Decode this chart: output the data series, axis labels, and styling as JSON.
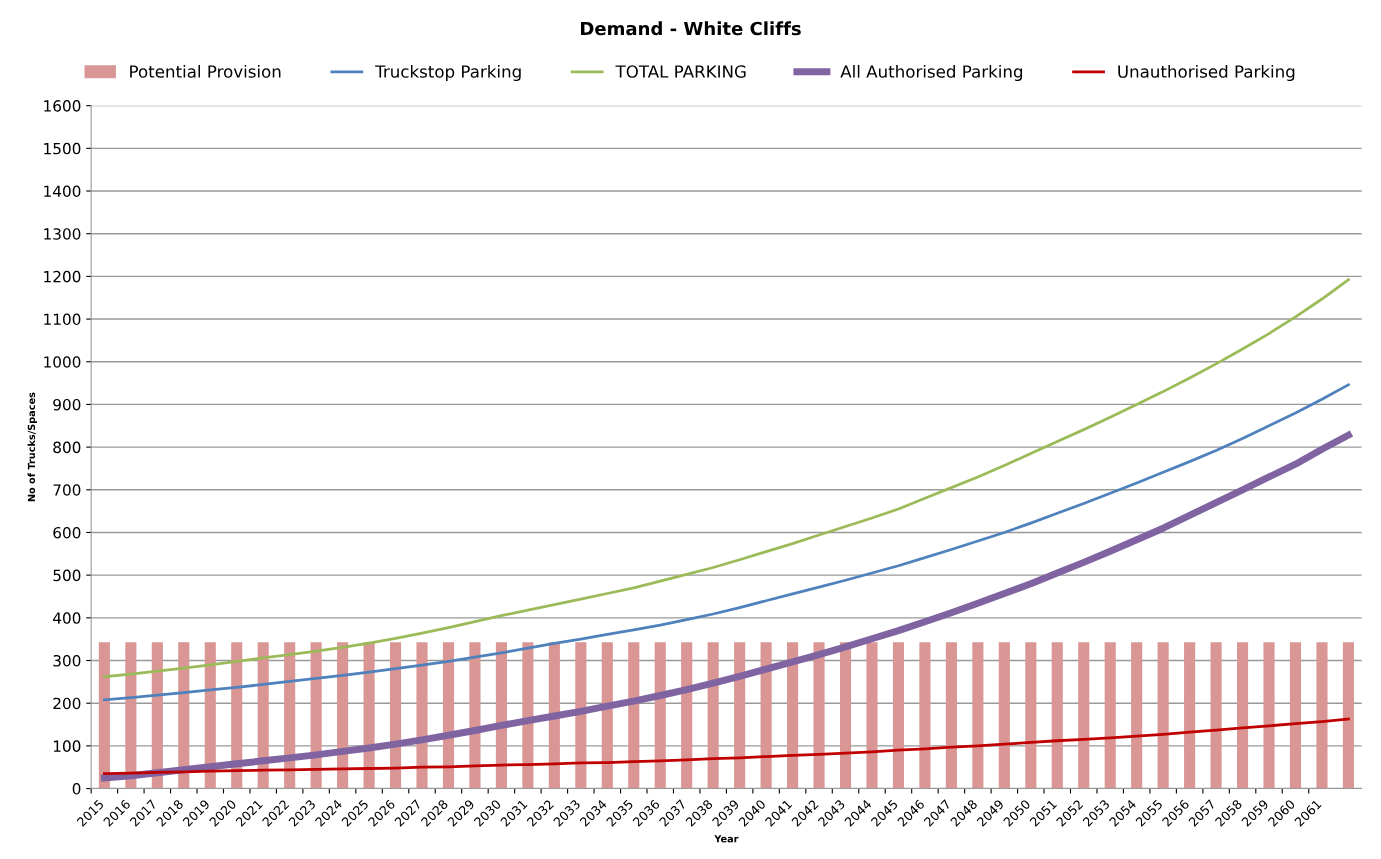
{
  "chart_data": {
    "type": "line",
    "title": "Demand - White Cliffs",
    "xlabel": "Year",
    "ylabel": "No of Trucks/Spaces",
    "categories": [
      "2015",
      "2016",
      "2017",
      "2018",
      "2019",
      "2020",
      "2021",
      "2022",
      "2023",
      "2024",
      "2025",
      "2026",
      "2027",
      "2028",
      "2029",
      "2030",
      "2031",
      "2032",
      "2033",
      "2034",
      "2035",
      "2036",
      "2037",
      "2038",
      "2039",
      "2040",
      "2041",
      "2042",
      "2043",
      "2044",
      "2045",
      "2046",
      "2047",
      "2048",
      "2049",
      "2050",
      "2051",
      "2052",
      "2053",
      "2054",
      "2055",
      "2056",
      "2057",
      "2058",
      "2059",
      "2060",
      "2061",
      null
    ],
    "series": [
      {
        "name": "Potential Provision",
        "type": "bar",
        "color": "#d99694",
        "values": [
          343,
          343,
          343,
          343,
          343,
          343,
          343,
          343,
          343,
          343,
          343,
          343,
          343,
          343,
          343,
          343,
          343,
          343,
          343,
          343,
          343,
          343,
          343,
          343,
          343,
          343,
          343,
          343,
          343,
          343,
          343,
          343,
          343,
          343,
          343,
          343,
          343,
          343,
          343,
          343,
          343,
          343,
          343,
          343,
          343,
          343,
          343,
          343
        ]
      },
      {
        "name": "Truckstop Parking",
        "color": "#4f81bd",
        "values": [
          208,
          213,
          219,
          225,
          231,
          237,
          244,
          251,
          258,
          265,
          273,
          281,
          289,
          298,
          308,
          318,
          329,
          340,
          350,
          361,
          372,
          383,
          396,
          409,
          424,
          440,
          456,
          472,
          488,
          505,
          522,
          541,
          560,
          580,
          600,
          622,
          645,
          668,
          692,
          716,
          741,
          766,
          792,
          820,
          850,
          880,
          912,
          946
        ]
      },
      {
        "name": "TOTAL PARKING",
        "color": "#9bbb59",
        "values": [
          262,
          268,
          275,
          282,
          290,
          298,
          306,
          314,
          322,
          331,
          341,
          352,
          364,
          377,
          391,
          405,
          418,
          431,
          444,
          457,
          470,
          486,
          502,
          518,
          536,
          555,
          574,
          594,
          614,
          634,
          655,
          680,
          705,
          730,
          757,
          785,
          813,
          841,
          870,
          900,
          930,
          962,
          995,
          1030,
          1066,
          1105,
          1147,
          1192
        ]
      },
      {
        "name": "All Authorised Parking",
        "color": "#8064a2",
        "values": [
          25,
          30,
          37,
          44,
          51,
          58,
          65,
          72,
          79,
          87,
          95,
          104,
          114,
          125,
          136,
          148,
          159,
          170,
          181,
          193,
          205,
          218,
          232,
          247,
          263,
          280,
          297,
          314,
          332,
          351,
          370,
          391,
          412,
          434,
          457,
          480,
          505,
          530,
          556,
          583,
          610,
          640,
          670,
          700,
          730,
          760,
          795,
          828
        ]
      },
      {
        "name": "Unauthorised Parking",
        "color": "#c00000",
        "values": [
          35,
          36,
          38,
          39,
          41,
          42,
          43,
          44,
          45,
          46,
          47,
          48,
          50,
          51,
          53,
          55,
          56,
          58,
          60,
          61,
          63,
          65,
          67,
          70,
          72,
          75,
          78,
          80,
          83,
          86,
          90,
          93,
          97,
          100,
          104,
          108,
          112,
          115,
          119,
          123,
          127,
          132,
          137,
          142,
          147,
          152,
          157,
          163
        ]
      }
    ],
    "ylim": [
      0,
      1600
    ],
    "yticks": [
      0,
      100,
      200,
      300,
      400,
      500,
      600,
      700,
      800,
      900,
      1000,
      1100,
      1200,
      1300,
      1400,
      1500,
      1600
    ],
    "grid": "y",
    "legend": "top",
    "marker": "none",
    "line_style": "solid"
  }
}
